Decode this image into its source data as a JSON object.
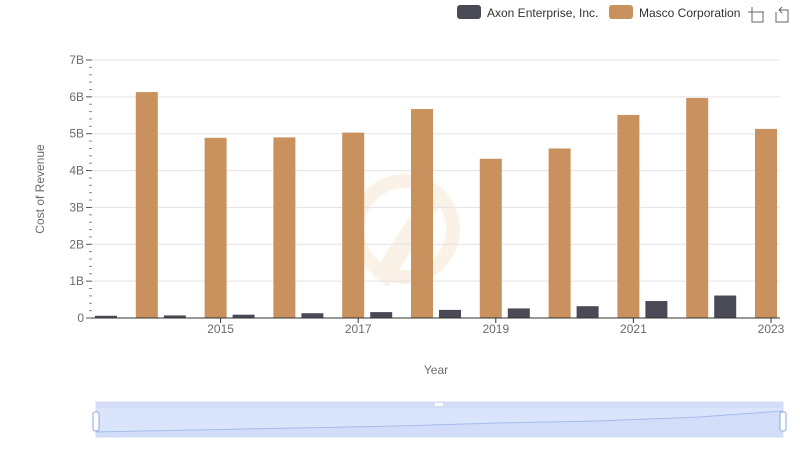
{
  "chart_data": {
    "type": "bar",
    "title": "",
    "xlabel": "Year",
    "ylabel": "Cost of Revenue",
    "categories": [
      "2014",
      "2015",
      "2016",
      "2017",
      "2018",
      "2019",
      "2020",
      "2021",
      "2022",
      "2023"
    ],
    "x_tick_labels": [
      "2015",
      "2017",
      "2019",
      "2021",
      "2023"
    ],
    "y_tick_labels": [
      "0",
      "1B",
      "2B",
      "3B",
      "4B",
      "5B",
      "6B",
      "7B"
    ],
    "ylim": [
      0,
      7000000000
    ],
    "grid": true,
    "legend_position": "top-right",
    "series": [
      {
        "name": "Axon Enterprise, Inc.",
        "color": "#4a4a56",
        "values": [
          60000000,
          70000000,
          90000000,
          130000000,
          160000000,
          220000000,
          260000000,
          320000000,
          460000000,
          610000000
        ]
      },
      {
        "name": "Masco Corporation",
        "color": "#c9915e",
        "values": [
          6130000000,
          4890000000,
          4900000000,
          5030000000,
          5670000000,
          4320000000,
          4600000000,
          5510000000,
          5970000000,
          5130000000
        ]
      }
    ]
  },
  "toolbar": {
    "icons": [
      "zoom-icon",
      "reset-zoom-icon"
    ]
  }
}
